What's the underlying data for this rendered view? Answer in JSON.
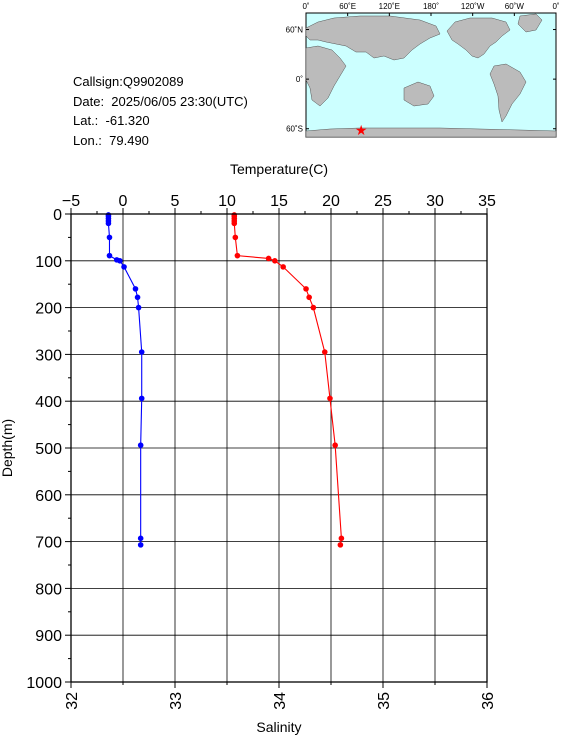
{
  "info": {
    "callsign": "Callsign:Q9902089",
    "date": "Date:  2025/06/05 23:30(UTC)",
    "lat": "Lat.:  -61.320",
    "lon": "Lon.:  79.490"
  },
  "map": {
    "top_labels": [
      "0˚",
      "60˚E",
      "120˚E",
      "180˚",
      "120˚W",
      "60˚W",
      "0˚"
    ],
    "side_labels": [
      "60˚N",
      "0˚",
      "60˚S"
    ],
    "ocean_color": "#ccffff",
    "land_color": "#bbbbbb",
    "marker": {
      "lon": 79.49,
      "lat": -61.32,
      "symbol": "star",
      "color": "#ff0000"
    }
  },
  "chart_data": {
    "type": "line",
    "xlabel_top": "Temperature(C)",
    "xlabel_bottom": "Salinity",
    "ylabel": "Depth(m)",
    "temperature_ticks": [
      "−5",
      "0",
      "5",
      "10",
      "15",
      "20",
      "25",
      "30",
      "35"
    ],
    "salinity_ticks": [
      "32",
      "33",
      "34",
      "35",
      "36"
    ],
    "depth_ticks": [
      "0",
      "100",
      "200",
      "300",
      "400",
      "500",
      "600",
      "700",
      "800",
      "900",
      "1000"
    ],
    "temperature_range": [
      -5,
      35
    ],
    "salinity_range": [
      32,
      36
    ],
    "depth_range": [
      0,
      1000
    ],
    "grid": true,
    "series": [
      {
        "color": "#0000ff",
        "axis": "salinity",
        "points": [
          [
            32.36,
            2
          ],
          [
            32.36,
            5
          ],
          [
            32.36,
            10
          ],
          [
            32.36,
            15
          ],
          [
            32.36,
            20
          ],
          [
            32.37,
            50
          ],
          [
            32.37,
            89
          ],
          [
            32.44,
            98
          ],
          [
            32.47,
            100
          ],
          [
            32.51,
            113
          ],
          [
            32.62,
            160
          ],
          [
            32.64,
            178
          ],
          [
            32.65,
            200
          ],
          [
            32.68,
            295
          ],
          [
            32.68,
            394
          ],
          [
            32.67,
            494
          ],
          [
            32.67,
            693
          ],
          [
            32.67,
            707
          ]
        ]
      },
      {
        "color": "#ff0000",
        "axis": "temperature",
        "points": [
          [
            10.7,
            2
          ],
          [
            10.7,
            5
          ],
          [
            10.7,
            10
          ],
          [
            10.7,
            15
          ],
          [
            10.7,
            20
          ],
          [
            10.8,
            50
          ],
          [
            11.0,
            89
          ],
          [
            14.0,
            95
          ],
          [
            14.6,
            100
          ],
          [
            15.4,
            113
          ],
          [
            17.6,
            160
          ],
          [
            17.9,
            178
          ],
          [
            18.3,
            200
          ],
          [
            19.4,
            295
          ],
          [
            19.9,
            394
          ],
          [
            20.4,
            494
          ],
          [
            21.0,
            693
          ],
          [
            20.9,
            707
          ]
        ]
      }
    ]
  }
}
